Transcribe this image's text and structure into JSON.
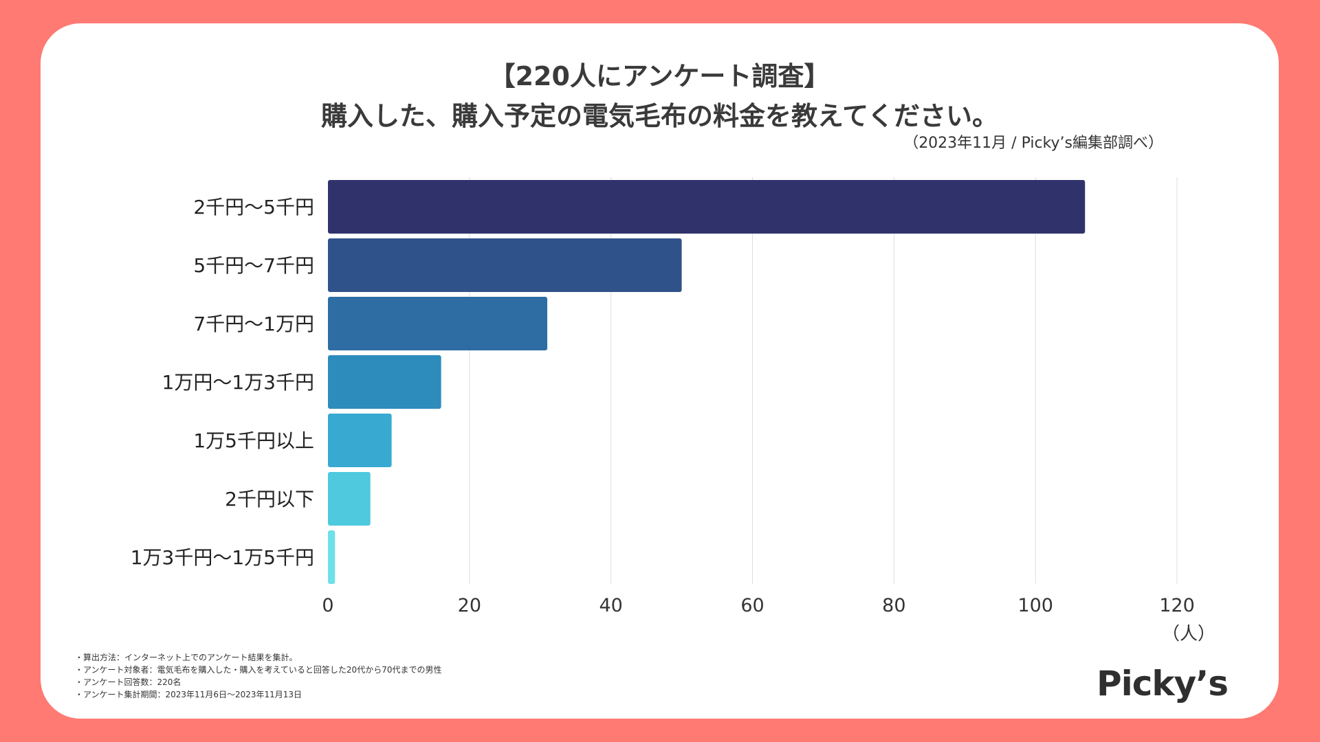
{
  "chart_data": {
    "type": "bar",
    "orientation": "horizontal",
    "title_line1": "【220人にアンケート調査】",
    "title_line2": "購入した、購入予定の電気毛布の料金を教えてください。",
    "source": "（2023年11月 / Picky’s編集部調べ）",
    "categories": [
      "2千円〜5千円",
      "5千円〜7千円",
      "7千円〜1万円",
      "1万円〜1万3千円",
      "1万5千円以上",
      "2千円以下",
      "1万3千円〜1万5千円"
    ],
    "values": [
      107,
      50,
      31,
      16,
      9,
      6,
      1
    ],
    "xlim": [
      0,
      120
    ],
    "xticks": [
      "0",
      "20",
      "40",
      "60",
      "80",
      "100",
      "120"
    ],
    "xunit": "（人）",
    "grid": true,
    "bar_colors": [
      "#30336B",
      "#30528A",
      "#2D6DA3",
      "#2D8CBC",
      "#38A9D0",
      "#4EC9DE",
      "#6FE0EA"
    ]
  },
  "notes": [
    "・算出方法：インターネット上でのアンケート結果を集計。",
    "・アンケート対象者：電気毛布を購入した・購入を考えていると回答した20代から70代までの男性",
    "・アンケート回答数：220名",
    "・アンケート集計期間：2023年11月6日〜2023年11月13日"
  ],
  "logo": "Picky’s",
  "colors": {
    "background": "#FF7A73",
    "card": "#FFFFFF",
    "grid": "#DDDDDD",
    "text": "#333333"
  }
}
